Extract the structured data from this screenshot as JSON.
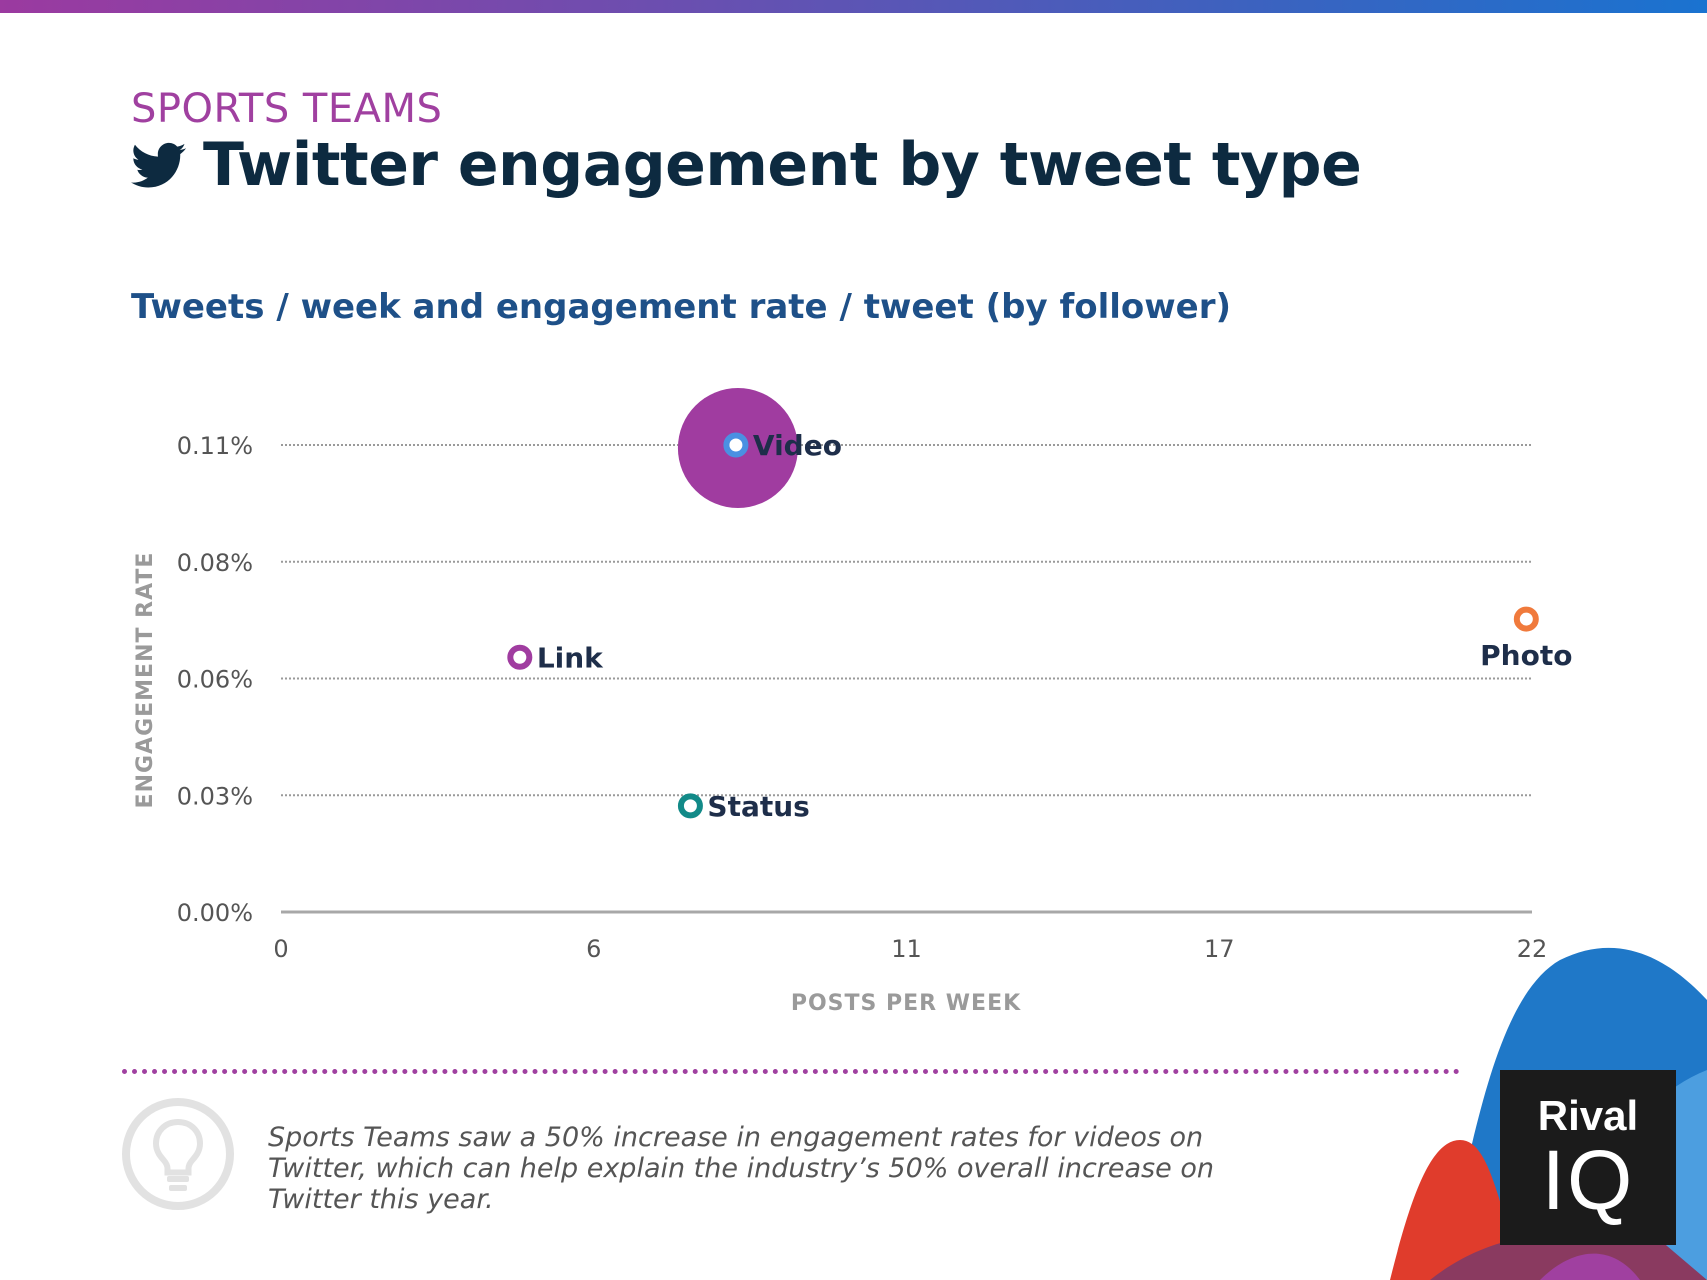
{
  "header": {
    "kicker": "SPORTS TEAMS",
    "title": "Twitter engagement by tweet type",
    "title_icon": "twitter-bird-icon",
    "subtitle": "Tweets / week and engagement rate / tweet (by follower)"
  },
  "chart_data": {
    "type": "scatter",
    "xlabel": "POSTS PER WEEK",
    "ylabel": "ENGAGEMENT RATE",
    "xlim": [
      0,
      22
    ],
    "ylim": [
      0,
      0.11
    ],
    "x_ticks": [
      {
        "value": 0,
        "label": "0"
      },
      {
        "value": 5.5,
        "label": "6"
      },
      {
        "value": 11,
        "label": "11"
      },
      {
        "value": 16.5,
        "label": "17"
      },
      {
        "value": 22,
        "label": "22"
      }
    ],
    "y_ticks": [
      {
        "value": 0,
        "label": "0.00%"
      },
      {
        "value": 0.0275,
        "label": "0.03%"
      },
      {
        "value": 0.055,
        "label": "0.06%"
      },
      {
        "value": 0.0825,
        "label": "0.08%"
      },
      {
        "value": 0.11,
        "label": "0.11%"
      }
    ],
    "grid": true,
    "points": [
      {
        "name": "Video",
        "x": 8.0,
        "y": 0.11,
        "color": "#4a90e2",
        "highlight": true,
        "highlight_color": "#a03ca0",
        "label_position": "right"
      },
      {
        "name": "Photo",
        "x": 21.9,
        "y": 0.069,
        "color": "#f07a3c",
        "highlight": false,
        "label_position": "below"
      },
      {
        "name": "Link",
        "x": 4.2,
        "y": 0.06,
        "color": "#a03ca0",
        "highlight": false,
        "label_position": "right"
      },
      {
        "name": "Status",
        "x": 7.2,
        "y": 0.025,
        "color": "#128a88",
        "highlight": false,
        "label_position": "right"
      }
    ]
  },
  "footer": {
    "bulb_icon": "lightbulb-icon",
    "insight": "Sports Teams saw a 50% increase in engagement rates for videos on Twitter, which can help explain the industry’s 50% overall increase on Twitter this year.",
    "logo_line1": "Rival",
    "logo_line2": "IQ"
  },
  "colors": {
    "accent_purple": "#a040a0",
    "title_navy": "#0d2a40",
    "subtitle_blue": "#1e5088"
  }
}
